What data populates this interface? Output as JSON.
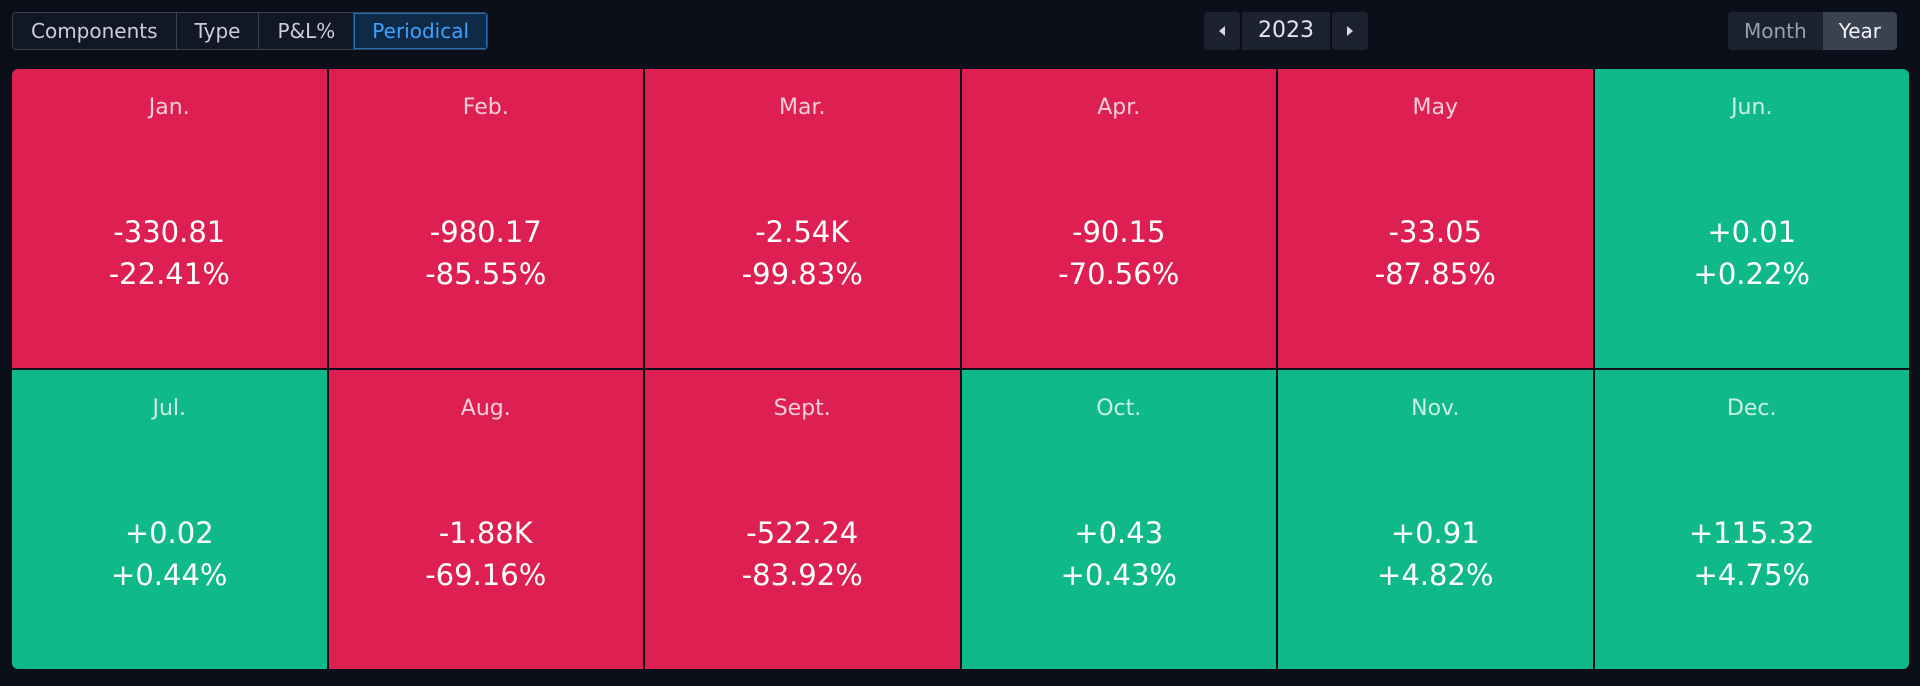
{
  "toolbar": {
    "tabs": [
      {
        "label": "Components",
        "active": false
      },
      {
        "label": "Type",
        "active": false
      },
      {
        "label": "P&L%",
        "active": false
      },
      {
        "label": "Periodical",
        "active": true
      }
    ]
  },
  "year_nav": {
    "prev_icon": "caret-left-icon",
    "year": "2023",
    "next_icon": "caret-right-icon"
  },
  "period_toggle": {
    "month_label": "Month",
    "year_label": "Year",
    "selected": "Year"
  },
  "colors": {
    "negative": "#dd2051",
    "positive": "#0fb98a",
    "active_tab": "#3ea3ff"
  },
  "months": [
    {
      "label": "Jan.",
      "value": "-330.81",
      "percent": "-22.41%",
      "sign": "neg"
    },
    {
      "label": "Feb.",
      "value": "-980.17",
      "percent": "-85.55%",
      "sign": "neg"
    },
    {
      "label": "Mar.",
      "value": "-2.54K",
      "percent": "-99.83%",
      "sign": "neg"
    },
    {
      "label": "Apr.",
      "value": "-90.15",
      "percent": "-70.56%",
      "sign": "neg"
    },
    {
      "label": "May",
      "value": "-33.05",
      "percent": "-87.85%",
      "sign": "neg"
    },
    {
      "label": "Jun.",
      "value": "+0.01",
      "percent": "+0.22%",
      "sign": "pos"
    },
    {
      "label": "Jul.",
      "value": "+0.02",
      "percent": "+0.44%",
      "sign": "pos"
    },
    {
      "label": "Aug.",
      "value": "-1.88K",
      "percent": "-69.16%",
      "sign": "neg"
    },
    {
      "label": "Sept.",
      "value": "-522.24",
      "percent": "-83.92%",
      "sign": "neg"
    },
    {
      "label": "Oct.",
      "value": "+0.43",
      "percent": "+0.43%",
      "sign": "pos"
    },
    {
      "label": "Nov.",
      "value": "+0.91",
      "percent": "+4.82%",
      "sign": "pos"
    },
    {
      "label": "Dec.",
      "value": "+115.32",
      "percent": "+4.75%",
      "sign": "pos"
    }
  ]
}
